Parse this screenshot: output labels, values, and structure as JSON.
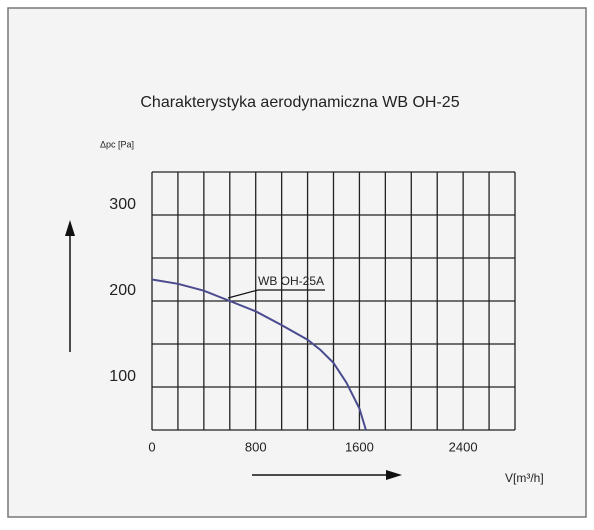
{
  "chart_data": {
    "type": "line",
    "title": "Charakterystyka aerodynamiczna WB OH-25",
    "y_label": "Δpc [Pa]",
    "x_label": "V[m³/h]",
    "annotation": "WB OH-25A",
    "xlim": [
      0,
      2800
    ],
    "xticks": [
      0,
      800,
      1600,
      2400
    ],
    "xgrid": [
      0,
      200,
      400,
      600,
      800,
      1000,
      1200,
      1400,
      1600,
      1800,
      2000,
      2200,
      2400,
      2600,
      2800
    ],
    "ylim": [
      50,
      350
    ],
    "yticks": [
      100,
      200,
      300
    ],
    "ygrid": [
      50,
      100,
      150,
      200,
      250,
      300,
      350
    ],
    "grid": true,
    "x": [
      0,
      200,
      400,
      600,
      800,
      1000,
      1200,
      1300,
      1400,
      1500,
      1600,
      1650
    ],
    "series": [
      {
        "name": "WB OH-25A",
        "color": "#4b4b8f",
        "values": [
          225,
          220,
          212,
          200,
          188,
          172,
          155,
          143,
          128,
          105,
          75,
          50
        ]
      }
    ]
  }
}
